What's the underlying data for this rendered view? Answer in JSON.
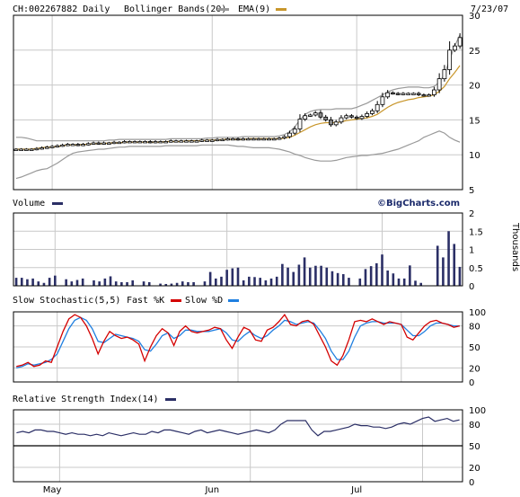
{
  "header": {
    "symbol_line": "CH:002267882 Daily",
    "indicator_label": "Bollinger Bands(20)",
    "ema_label": "EMA(9)",
    "date": "7/23/07"
  },
  "watermark": "©BigCharts.com",
  "colors": {
    "candle": "#000000",
    "bollinger": "#999999",
    "ema": "#c8962b",
    "volume": "#2b2f66",
    "fast_k": "#d40000",
    "slow_d": "#1f7fe0",
    "rsi": "#2b2f66",
    "grid": "#c8c8c8"
  },
  "chart_data": [
    {
      "type": "candlestick",
      "title": "CH:002267882 Daily",
      "overlays": [
        "Bollinger Bands(20)",
        "EMA(9)"
      ],
      "ylim": [
        5,
        30
      ],
      "yticks": [
        5,
        10,
        15,
        20,
        25,
        30
      ],
      "x_month_labels": [
        {
          "label": "May",
          "index": 7
        },
        {
          "label": "Jun",
          "index": 38
        },
        {
          "label": "Jul",
          "index": 66
        }
      ],
      "close": [
        10.8,
        10.8,
        10.8,
        10.8,
        10.9,
        11.0,
        11.1,
        11.2,
        11.3,
        11.4,
        11.5,
        11.5,
        11.4,
        11.5,
        11.6,
        11.7,
        11.6,
        11.7,
        11.7,
        11.8,
        11.8,
        11.9,
        11.9,
        11.9,
        11.9,
        11.9,
        11.8,
        11.9,
        11.9,
        11.9,
        12.0,
        12.0,
        12.0,
        12.0,
        12.0,
        12.0,
        12.1,
        12.1,
        12.1,
        12.2,
        12.2,
        12.3,
        12.3,
        12.2,
        12.3,
        12.3,
        12.3,
        12.3,
        12.3,
        12.3,
        12.3,
        12.4,
        12.6,
        13.1,
        13.7,
        15.1,
        15.6,
        15.7,
        16.0,
        15.4,
        15.0,
        14.3,
        14.7,
        15.3,
        15.6,
        15.4,
        15.2,
        15.5,
        15.9,
        16.3,
        17.2,
        18.3,
        18.9,
        18.8,
        18.7,
        18.8,
        18.8,
        18.8,
        18.6,
        18.5,
        18.6,
        19.3,
        20.9,
        22.2,
        25.0,
        25.6,
        26.8
      ],
      "bb_upper": [
        12.5,
        12.5,
        12.4,
        12.2,
        12.0,
        12.0,
        12.0,
        12.0,
        12.0,
        12.0,
        12.0,
        12.0,
        12.0,
        12.0,
        12.0,
        12.0,
        12.0,
        12.0,
        12.1,
        12.1,
        12.2,
        12.2,
        12.2,
        12.2,
        12.2,
        12.2,
        12.2,
        12.2,
        12.2,
        12.2,
        12.3,
        12.3,
        12.3,
        12.3,
        12.3,
        12.3,
        12.3,
        12.4,
        12.4,
        12.5,
        12.5,
        12.5,
        12.5,
        12.5,
        12.6,
        12.6,
        12.6,
        12.6,
        12.6,
        12.6,
        12.6,
        12.7,
        12.9,
        13.3,
        14.0,
        15.0,
        15.8,
        16.2,
        16.4,
        16.5,
        16.5,
        16.5,
        16.6,
        16.6,
        16.6,
        16.6,
        16.8,
        17.1,
        17.4,
        17.8,
        18.2,
        18.6,
        19.0,
        19.3,
        19.5,
        19.6,
        19.7,
        19.7,
        19.7,
        19.6,
        19.6,
        19.8,
        20.4,
        21.5,
        23.6,
        25.6,
        27.2
      ],
      "bb_lower": [
        6.6,
        6.8,
        7.1,
        7.4,
        7.7,
        7.9,
        8.0,
        8.4,
        8.8,
        9.3,
        9.8,
        10.2,
        10.4,
        10.5,
        10.6,
        10.7,
        10.8,
        10.8,
        10.9,
        11.0,
        11.1,
        11.1,
        11.2,
        11.2,
        11.2,
        11.2,
        11.2,
        11.2,
        11.2,
        11.3,
        11.3,
        11.3,
        11.3,
        11.3,
        11.3,
        11.3,
        11.4,
        11.4,
        11.4,
        11.4,
        11.4,
        11.4,
        11.3,
        11.2,
        11.2,
        11.1,
        11.0,
        11.0,
        11.0,
        11.0,
        10.9,
        10.8,
        10.6,
        10.4,
        10.1,
        9.9,
        9.6,
        9.4,
        9.2,
        9.1,
        9.1,
        9.1,
        9.2,
        9.4,
        9.6,
        9.7,
        9.8,
        9.9,
        9.9,
        10.0,
        10.1,
        10.2,
        10.4,
        10.6,
        10.8,
        11.1,
        11.4,
        11.7,
        12.0,
        12.5,
        12.8,
        13.1,
        13.4,
        13.1,
        12.5,
        12.1,
        11.8
      ],
      "ema": [
        10.8,
        10.8,
        10.8,
        10.8,
        10.9,
        11.0,
        11.1,
        11.1,
        11.2,
        11.3,
        11.4,
        11.4,
        11.4,
        11.5,
        11.5,
        11.6,
        11.6,
        11.6,
        11.7,
        11.7,
        11.7,
        11.8,
        11.8,
        11.8,
        11.8,
        11.8,
        11.8,
        11.8,
        11.8,
        11.9,
        11.9,
        11.9,
        11.9,
        12.0,
        12.0,
        12.0,
        12.0,
        12.1,
        12.1,
        12.1,
        12.2,
        12.2,
        12.2,
        12.2,
        12.2,
        12.3,
        12.3,
        12.3,
        12.3,
        12.3,
        12.3,
        12.3,
        12.4,
        12.5,
        12.8,
        13.2,
        13.6,
        14.0,
        14.3,
        14.5,
        14.6,
        14.6,
        14.6,
        14.7,
        14.9,
        15.0,
        15.1,
        15.2,
        15.3,
        15.5,
        15.8,
        16.3,
        16.8,
        17.2,
        17.5,
        17.7,
        17.9,
        18.0,
        18.2,
        18.3,
        18.4,
        18.6,
        19.1,
        19.8,
        20.9,
        21.8,
        22.8
      ]
    },
    {
      "type": "bar",
      "title": "Volume",
      "ylabel": "Thousands",
      "ylim": [
        0,
        2
      ],
      "yticks": [
        0,
        0.5,
        1,
        1.5,
        2
      ],
      "values": [
        0.22,
        0.22,
        0.18,
        0.2,
        0.12,
        0.08,
        0.22,
        0.28,
        0.0,
        0.18,
        0.12,
        0.16,
        0.2,
        0.0,
        0.15,
        0.12,
        0.2,
        0.26,
        0.12,
        0.1,
        0.1,
        0.15,
        0.0,
        0.12,
        0.1,
        0.0,
        0.06,
        0.05,
        0.06,
        0.08,
        0.12,
        0.1,
        0.1,
        0.0,
        0.12,
        0.38,
        0.2,
        0.25,
        0.44,
        0.48,
        0.5,
        0.15,
        0.25,
        0.24,
        0.22,
        0.15,
        0.2,
        0.25,
        0.6,
        0.5,
        0.38,
        0.58,
        0.78,
        0.5,
        0.55,
        0.55,
        0.5,
        0.4,
        0.35,
        0.32,
        0.22,
        0.0,
        0.2,
        0.46,
        0.54,
        0.62,
        0.86,
        0.42,
        0.34,
        0.2,
        0.2,
        0.56,
        0.14,
        0.08,
        0.0,
        0.0,
        1.1,
        0.78,
        1.5,
        1.15,
        0.52
      ]
    },
    {
      "type": "line",
      "title": "Slow Stochastic(5,5)",
      "series": [
        {
          "name": "Fast %K",
          "values": [
            22,
            24,
            28,
            22,
            24,
            30,
            28,
            50,
            72,
            90,
            96,
            92,
            80,
            62,
            40,
            58,
            72,
            66,
            62,
            64,
            60,
            54,
            30,
            50,
            66,
            76,
            70,
            52,
            72,
            80,
            72,
            70,
            72,
            74,
            78,
            76,
            60,
            48,
            64,
            78,
            74,
            60,
            58,
            74,
            78,
            86,
            96,
            82,
            80,
            86,
            88,
            82,
            66,
            50,
            30,
            24,
            38,
            60,
            86,
            88,
            86,
            90,
            86,
            82,
            86,
            84,
            82,
            64,
            60,
            70,
            80,
            86,
            88,
            84,
            82,
            78,
            80
          ]
        },
        {
          "name": "Slow %D",
          "values": [
            20,
            22,
            26,
            24,
            26,
            28,
            32,
            40,
            58,
            76,
            88,
            92,
            88,
            76,
            58,
            56,
            62,
            68,
            66,
            64,
            62,
            58,
            46,
            44,
            54,
            66,
            70,
            62,
            66,
            74,
            74,
            72,
            72,
            72,
            74,
            76,
            70,
            60,
            58,
            66,
            72,
            66,
            62,
            66,
            74,
            80,
            88,
            86,
            82,
            84,
            86,
            84,
            74,
            62,
            44,
            32,
            32,
            44,
            64,
            80,
            84,
            86,
            86,
            84,
            84,
            84,
            82,
            74,
            66,
            66,
            72,
            80,
            84,
            84,
            82,
            80,
            80
          ]
        }
      ],
      "ylim": [
        0,
        100
      ],
      "yticks": [
        0,
        20,
        50,
        80,
        100
      ]
    },
    {
      "type": "line",
      "title": "Relative Strength Index(14)",
      "series": [
        {
          "name": "RSI",
          "values": [
            68,
            70,
            68,
            72,
            72,
            70,
            70,
            68,
            66,
            68,
            66,
            66,
            64,
            66,
            64,
            68,
            66,
            64,
            66,
            68,
            66,
            66,
            70,
            68,
            72,
            72,
            70,
            68,
            66,
            70,
            72,
            68,
            70,
            72,
            70,
            68,
            66,
            68,
            70,
            72,
            70,
            68,
            72,
            80,
            85,
            85,
            85,
            85,
            72,
            64,
            70,
            70,
            72,
            74,
            76,
            80,
            78,
            78,
            76,
            76,
            74,
            76,
            80,
            82,
            80,
            84,
            88,
            90,
            84,
            86,
            88,
            84,
            86
          ]
        }
      ],
      "ylim": [
        0,
        100
      ],
      "yticks": [
        0,
        20,
        50,
        80,
        100
      ]
    }
  ],
  "panels": {
    "volume_label": "Volume",
    "stoch_label": "Slow Stochastic(5,5)",
    "stoch_k_label": "Fast %K",
    "stoch_d_label": "Slow %D",
    "rsi_label": "Relative Strength Index(14)"
  },
  "x_axis": {
    "months": [
      {
        "label": "May",
        "index": 7
      },
      {
        "label": "Jun",
        "index": 38
      },
      {
        "label": "Jul",
        "index": 66
      }
    ]
  }
}
